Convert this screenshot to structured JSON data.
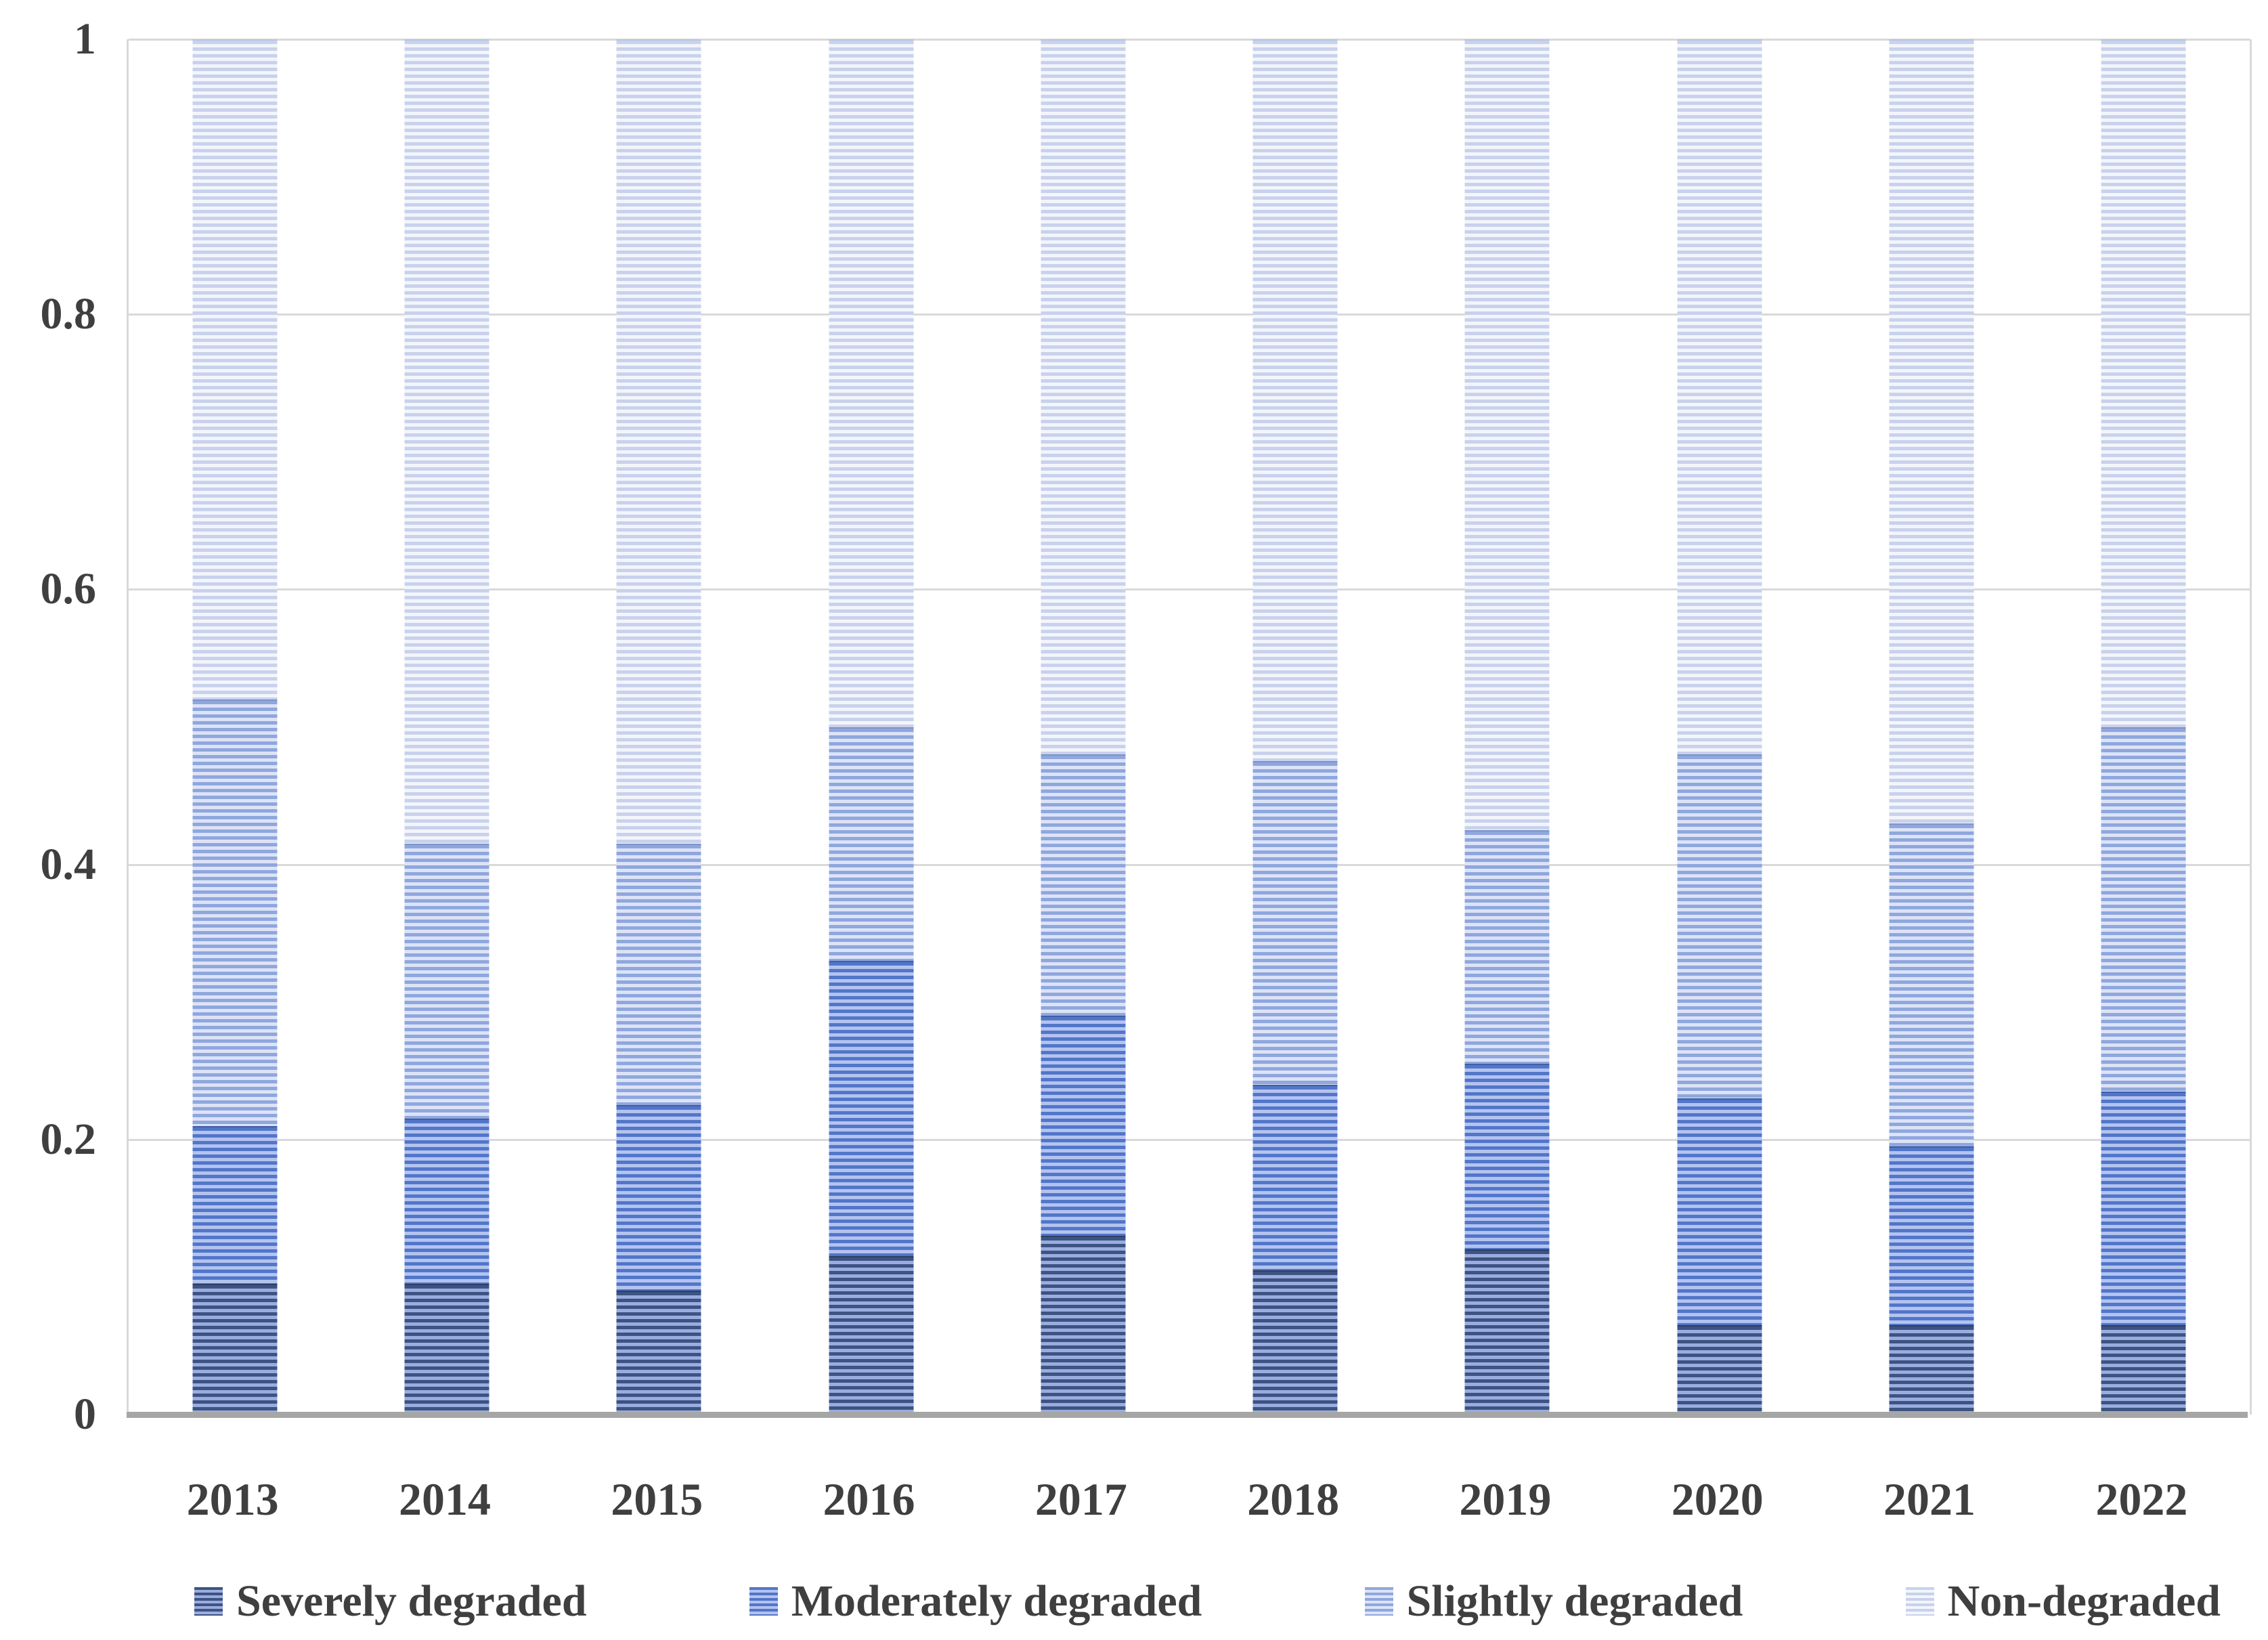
{
  "chart_data": {
    "type": "bar",
    "stacked": true,
    "title": "",
    "xlabel": "",
    "ylabel": "",
    "categories": [
      "2013",
      "2014",
      "2015",
      "2016",
      "2017",
      "2018",
      "2019",
      "2020",
      "2021",
      "2022"
    ],
    "series": [
      {
        "name": "Severely degraded",
        "values": [
          0.095,
          0.095,
          0.09,
          0.115,
          0.13,
          0.105,
          0.12,
          0.065,
          0.065,
          0.065
        ],
        "stripe_dark": "#3d5381",
        "stripe_light": "#9aace0",
        "edge": "#2c3f66"
      },
      {
        "name": "Moderately degraded",
        "values": [
          0.115,
          0.12,
          0.135,
          0.215,
          0.16,
          0.135,
          0.135,
          0.165,
          0.13,
          0.17
        ],
        "stripe_dark": "#5276c8",
        "stripe_light": "#b3c3f0",
        "edge": "#3f5ea6"
      },
      {
        "name": "Slightly degraded",
        "values": [
          0.31,
          0.2,
          0.19,
          0.17,
          0.19,
          0.235,
          0.17,
          0.25,
          0.235,
          0.265
        ],
        "stripe_dark": "#8fa7dd",
        "stripe_light": "#dce3f7",
        "edge": "#7b93c9"
      },
      {
        "name": "Non-degraded",
        "values": [
          0.48,
          0.585,
          0.585,
          0.5,
          0.52,
          0.525,
          0.575,
          0.52,
          0.57,
          0.5
        ],
        "stripe_dark": "#c9d2ec",
        "stripe_light": "#f3f5fc",
        "edge": "#bac4e4"
      }
    ],
    "y_ticks": [
      {
        "label": "1",
        "value": 1.0
      },
      {
        "label": "0.8",
        "value": 0.8
      },
      {
        "label": "0.6",
        "value": 0.6
      },
      {
        "label": "0.4",
        "value": 0.4
      },
      {
        "label": "0.2",
        "value": 0.2
      },
      {
        "label": "0",
        "value": 0.0
      }
    ],
    "ylim": [
      0,
      1
    ],
    "grid": true,
    "legend_position": "bottom"
  },
  "colors": {
    "gridline": "#d9d9d9",
    "axis_line": "#a6a6a6",
    "text": "#3f3f3f",
    "background": "#ffffff"
  }
}
